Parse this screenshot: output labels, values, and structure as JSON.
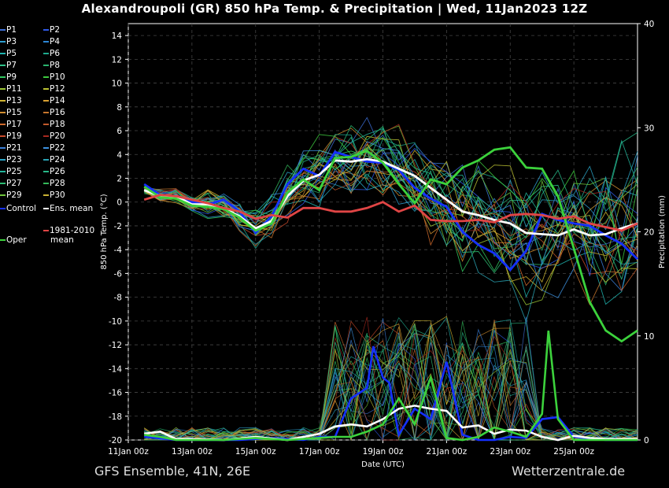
{
  "title": "Alexandroupoli  (GR)  850 hPa Temp. & Precipitation | Wed, 11Jan2023 12Z",
  "footer": {
    "left": "GFS Ensemble, 41N, 26E",
    "right": "Wetterzentrale.de"
  },
  "legend": {
    "left": [
      {
        "label": "P1",
        "color": "#3d6fd6"
      },
      {
        "label": "P3",
        "color": "#2e9fd0"
      },
      {
        "label": "P5",
        "color": "#1fb5b0"
      },
      {
        "label": "P7",
        "color": "#2fc38a"
      },
      {
        "label": "P9",
        "color": "#31c75f"
      },
      {
        "label": "P11",
        "color": "#9cc735"
      },
      {
        "label": "P13",
        "color": "#d0b431"
      },
      {
        "label": "P15",
        "color": "#d08d2f"
      },
      {
        "label": "P17",
        "color": "#d06a2c"
      },
      {
        "label": "P19",
        "color": "#c94a2a"
      },
      {
        "label": "P21",
        "color": "#3b7fd8"
      },
      {
        "label": "P23",
        "color": "#2aa6c8"
      },
      {
        "label": "P25",
        "color": "#22b49a"
      },
      {
        "label": "P27",
        "color": "#2dbd74"
      },
      {
        "label": "P29",
        "color": "#6fc43a"
      }
    ],
    "right": [
      {
        "label": "P2",
        "color": "#2f59e6"
      },
      {
        "label": "P4",
        "color": "#2c86d6"
      },
      {
        "label": "P6",
        "color": "#1eaa8e"
      },
      {
        "label": "P8",
        "color": "#2ab36e"
      },
      {
        "label": "P10",
        "color": "#3dc83e"
      },
      {
        "label": "P12",
        "color": "#bcc233"
      },
      {
        "label": "P14",
        "color": "#d9a132"
      },
      {
        "label": "P16",
        "color": "#c7762d"
      },
      {
        "label": "P18",
        "color": "#c25a2b"
      },
      {
        "label": "P20",
        "color": "#a8281f"
      },
      {
        "label": "P22",
        "color": "#3d92e0"
      },
      {
        "label": "P24",
        "color": "#29a2b3"
      },
      {
        "label": "P26",
        "color": "#27b888"
      },
      {
        "label": "P28",
        "color": "#33b95a"
      },
      {
        "label": "P30",
        "color": "#c9b233"
      }
    ],
    "control": {
      "label": "Control",
      "color": "#1530ff"
    },
    "ensmean": {
      "label": "Ens. mean",
      "color": "#ffffff"
    },
    "oper": {
      "label": "Oper",
      "color": "#3cd23c"
    },
    "climate": {
      "line1": "1981-2010",
      "line2": "mean",
      "color": "#e04545"
    }
  },
  "chart_data": {
    "type": "line",
    "xlabel": "Date (UTC)",
    "ylabel": "850 hPa Temp. (°C)",
    "y2label": "Precipitation (mm)",
    "xlim": [
      0,
      16
    ],
    "ylim": [
      -20,
      15
    ],
    "y2lim": [
      0,
      40
    ],
    "xticks": [
      {
        "day": 0,
        "label": "11Jan 00z"
      },
      {
        "day": 2,
        "label": "13Jan 00z"
      },
      {
        "day": 4,
        "label": "15Jan 00z"
      },
      {
        "day": 6,
        "label": "17Jan 00z"
      },
      {
        "day": 8,
        "label": "19Jan 00z"
      },
      {
        "day": 10,
        "label": "21Jan 00z"
      },
      {
        "day": 12,
        "label": "23Jan 00z"
      },
      {
        "day": 14,
        "label": "25Jan 00z"
      }
    ],
    "yticks": [
      14,
      12,
      10,
      8,
      6,
      4,
      2,
      0,
      -2,
      -4,
      -6,
      -8,
      -10,
      -12,
      -14,
      -16,
      -18,
      -20
    ],
    "y2ticks": [
      0,
      10,
      20,
      30,
      40
    ],
    "grid": true,
    "temperature_series": [
      {
        "name": "Control",
        "x": [
          0.5,
          1,
          1.5,
          2,
          2.5,
          3,
          3.5,
          4,
          4.5,
          5,
          5.5,
          6,
          6.5,
          7,
          7.5,
          8,
          8.5,
          9,
          9.5,
          10,
          10.5,
          11,
          11.5,
          12,
          12.5,
          13,
          13.5,
          14,
          14.5,
          15,
          15.5,
          16
        ],
        "y": [
          1.5,
          0.6,
          0.5,
          0,
          -0.2,
          0.2,
          -0.8,
          -2.6,
          -1.2,
          1.5,
          2.8,
          2.2,
          4.2,
          3.8,
          3.4,
          3.3,
          2.7,
          1.2,
          0.3,
          -0.4,
          -2.5,
          -3.6,
          -4.3,
          -5.7,
          -4.1,
          -1,
          -1.5,
          -1.8,
          -2,
          -2.8,
          -3.5,
          -4.8
        ]
      },
      {
        "name": "Ens. mean",
        "x": [
          0.5,
          1,
          1.5,
          2,
          2.5,
          3,
          3.5,
          4,
          4.5,
          5,
          5.5,
          6,
          6.5,
          7,
          7.5,
          8,
          8.5,
          9,
          9.5,
          10,
          10.5,
          11,
          11.5,
          12,
          12.5,
          13,
          13.5,
          14,
          14.5,
          15,
          15.5,
          16
        ],
        "y": [
          1,
          0.5,
          0.5,
          -0.2,
          -0.2,
          -0.5,
          -1.2,
          -2.2,
          -1.6,
          0.5,
          1.8,
          2.3,
          3.5,
          3.4,
          3.6,
          3.4,
          2.8,
          2.2,
          1.2,
          0.2,
          -0.8,
          -1.1,
          -1.5,
          -1.8,
          -2.6,
          -2.7,
          -2.8,
          -2.3,
          -2.8,
          -2.7,
          -2.2,
          -1.8
        ]
      },
      {
        "name": "Oper",
        "x": [
          0.5,
          1,
          1.5,
          2,
          2.5,
          3,
          3.5,
          4,
          4.5,
          5,
          5.5,
          6,
          6.5,
          7,
          7.5,
          8,
          8.5,
          9,
          9.5,
          10,
          10.5,
          11,
          11.5,
          12,
          12.5,
          13,
          13.5,
          14,
          14.5,
          15,
          15.5,
          16
        ],
        "y": [
          1.3,
          0.4,
          0.3,
          -0.3,
          -0.4,
          -0.6,
          -1.3,
          -2.4,
          -1.8,
          0.8,
          1.9,
          1,
          3.7,
          3.8,
          4.3,
          3.3,
          1.5,
          -0.1,
          1.9,
          1.5,
          2.9,
          3.5,
          4.4,
          4.6,
          2.9,
          2.8,
          0.5,
          -3.9,
          -8.4,
          -10.8,
          -11.7,
          -10.8
        ]
      },
      {
        "name": "1981-2010 mean",
        "x": [
          0.5,
          1,
          1.5,
          2,
          2.5,
          3,
          3.5,
          4,
          4.5,
          5,
          5.5,
          6,
          6.5,
          7,
          7.5,
          8,
          8.5,
          9,
          9.5,
          10,
          10.5,
          11,
          11.5,
          12,
          12.5,
          13,
          13.5,
          14,
          14.5,
          15,
          15.5,
          16
        ],
        "y": [
          0.2,
          0.6,
          0.5,
          0.2,
          -0.1,
          -0.5,
          -0.8,
          -1.4,
          -1.1,
          -1.3,
          -0.5,
          -0.5,
          -0.8,
          -0.8,
          -0.5,
          0,
          -0.8,
          -0.3,
          -1.5,
          -1.6,
          -1.6,
          -1.5,
          -1.7,
          -1.1,
          -1,
          -1.1,
          -1.4,
          -1.2,
          -1.8,
          -2.1,
          -2.4,
          -1.8
        ]
      }
    ],
    "precipitation_series": [
      {
        "name": "Control",
        "x": [
          0.5,
          1.5,
          2.5,
          3.5,
          4.5,
          5.5,
          6,
          6.5,
          7,
          7.5,
          7.7,
          8,
          8.2,
          8.5,
          9,
          9.5,
          10,
          10.5,
          11,
          11.5,
          12,
          12.5,
          13,
          13.5,
          14,
          15,
          16
        ],
        "y": [
          0.3,
          0,
          0,
          0,
          0.2,
          0,
          0.3,
          0.3,
          4,
          5,
          9,
          6,
          5.5,
          0.5,
          3,
          2,
          7.5,
          0.5,
          0,
          0,
          0.3,
          0.2,
          2,
          2.2,
          0.3,
          0,
          0
        ]
      },
      {
        "name": "Ens. mean",
        "x": [
          0.5,
          1,
          1.5,
          2,
          3,
          4,
          5,
          6,
          6.5,
          7,
          7.5,
          8,
          8.5,
          9,
          9.5,
          10,
          10.5,
          11,
          11.5,
          12,
          12.5,
          13,
          13.5,
          14,
          14.5,
          15,
          16
        ],
        "y": [
          0.6,
          0.8,
          0.1,
          0.1,
          0,
          0.3,
          0,
          0.6,
          1.3,
          1.5,
          1.3,
          2,
          3,
          3.3,
          3,
          2.8,
          1.2,
          1.4,
          0.6,
          1,
          0.9,
          0.3,
          0,
          0.4,
          0.2,
          0.1,
          0.1
        ]
      },
      {
        "name": "Oper",
        "x": [
          0.5,
          1,
          1.5,
          2,
          3,
          4,
          5,
          6,
          6.5,
          7,
          7.5,
          8,
          8.5,
          9,
          9.5,
          10,
          10.5,
          11,
          11.5,
          12,
          12.5,
          13,
          13.2,
          13.5,
          14,
          14.5,
          15,
          16
        ],
        "y": [
          0.5,
          0.3,
          0,
          0,
          0,
          0.2,
          0,
          0.2,
          0.3,
          0.3,
          0.8,
          1.5,
          4,
          1.5,
          6,
          0.2,
          0,
          0.3,
          1.2,
          0.8,
          0.3,
          2.5,
          10.5,
          2,
          0,
          0,
          0,
          0
        ]
      }
    ]
  }
}
